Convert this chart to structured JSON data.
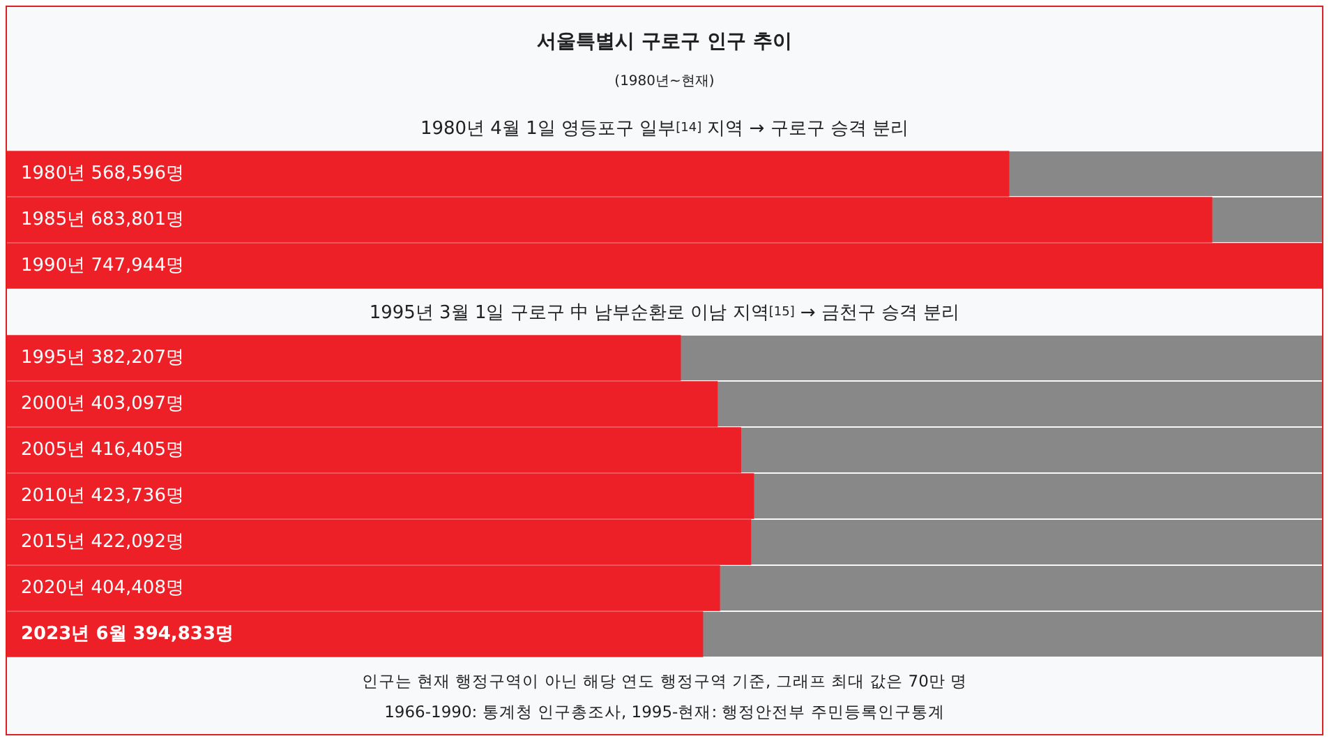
{
  "chart_data": [
    {
      "type": "bar",
      "orientation": "horizontal",
      "title": "서울특별시 구로구 인구 추이",
      "subtitle": "(1980년~현재)",
      "categories": [
        "1980년",
        "1985년",
        "1990년"
      ],
      "values": [
        568596,
        683801,
        747944
      ],
      "value_labels": [
        "568,596명",
        "683,801명",
        "747,944명"
      ],
      "color": "#ed2028",
      "annotations": [
        "1980년 4월 1일 영등포구 일부$^{[14]}$ 지역 → 구로구 승격 분리"
      ],
      "legend": false
    },
    {
      "type": "bar",
      "orientation": "horizontal",
      "categories": [
        "1995년",
        "2000년",
        "2005년",
        "2010년",
        "2015년",
        "2020년",
        "2023년 6월"
      ],
      "values": [
        382207,
        403097,
        416405,
        423736,
        422092,
        404408,
        394833
      ],
      "value_labels": [
        "382,207명",
        "403,097명",
        "416,405명",
        "423,736명",
        "422,092명",
        "404,408명",
        "394,833명"
      ],
      "color": "#ed2028",
      "annotations": [
        "1995년 3월 1일 구로구 中 남부순환로 이남 지역$^{[15]}$ → 금천구 승격 분리",
        "인구는 현재 행정구역이 아닌 해당 연도 행정구역 기준, 그래프 최대 값은 70만 명",
        "1966-1990: 통계청 인구총조사, 1995-현재: 행정안전부 주민등록인구통계"
      ],
      "legend": false
    }
  ]
}
